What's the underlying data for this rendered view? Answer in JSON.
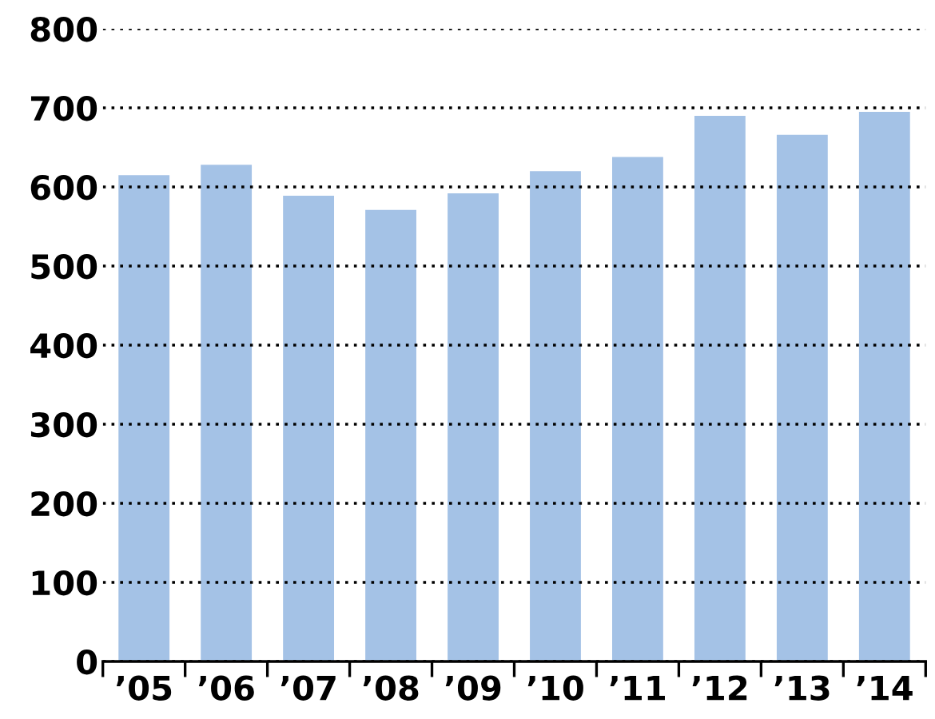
{
  "chart_data": {
    "type": "bar",
    "categories": [
      "’05",
      "’06",
      "’07",
      "’08",
      "’09",
      "’10",
      "’11",
      "’12",
      "’13",
      "’14"
    ],
    "values": [
      615,
      628,
      589,
      571,
      592,
      620,
      638,
      690,
      666,
      695
    ],
    "color": "#a4c2e6",
    "ylim": [
      0,
      800
    ],
    "yticks": [
      0,
      100,
      200,
      300,
      400,
      500,
      600,
      700,
      800
    ],
    "grid": "y",
    "line_style": "dotted"
  }
}
